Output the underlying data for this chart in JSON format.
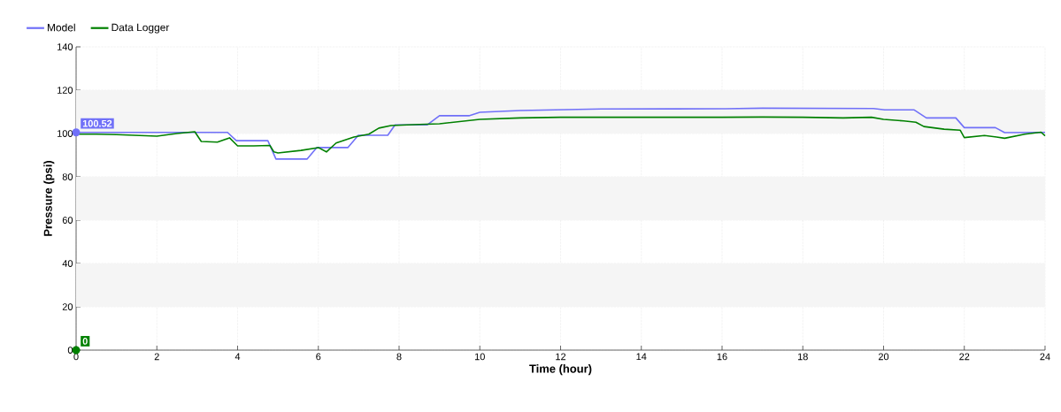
{
  "chart_data": {
    "type": "line",
    "xlabel": "Time (hour)",
    "ylabel": "Pressure (psi)",
    "xlim": [
      0,
      24
    ],
    "ylim": [
      0,
      140
    ],
    "xticks": [
      0,
      2,
      4,
      6,
      8,
      10,
      12,
      14,
      16,
      18,
      20,
      22,
      24
    ],
    "yticks": [
      0,
      20,
      40,
      60,
      80,
      100,
      120,
      140
    ],
    "grid": true,
    "legend": "top left",
    "line_style": "solid",
    "marker": "none",
    "bands": [
      {
        "axis": "y",
        "from": 20,
        "to": 40,
        "color": "#f5f5f5"
      },
      {
        "axis": "y",
        "from": 60,
        "to": 80,
        "color": "#f5f5f5"
      },
      {
        "axis": "y",
        "from": 100,
        "to": 120,
        "color": "#f5f5f5"
      }
    ],
    "annotations": [
      {
        "text": "100.52",
        "x": 0,
        "y": 100.52
      },
      {
        "text": "0",
        "x": 0,
        "y": 0
      }
    ],
    "series": [
      {
        "name": "Model",
        "color": "#7070f8",
        "x": [
          0,
          3.75,
          3.97,
          4.75,
          4.95,
          5.72,
          5.96,
          6.73,
          6.99,
          7.72,
          7.9,
          8.7,
          9.0,
          9.73,
          10.0,
          11,
          13,
          16.1,
          17,
          19.75,
          20.03,
          20.76,
          21.06,
          21.79,
          22.0,
          22.77,
          23.0,
          24
        ],
        "values": [
          100.5,
          100.5,
          96.7,
          96.7,
          88.2,
          88.2,
          93.5,
          93.5,
          99.2,
          99.2,
          104,
          104,
          108.2,
          108.2,
          109.8,
          110.6,
          111.3,
          111.4,
          111.7,
          111.5,
          110.9,
          110.9,
          107.2,
          107.2,
          102.7,
          102.7,
          100.4,
          100.5
        ]
      },
      {
        "name": "Data Logger",
        "color": "#008000",
        "x": [
          0,
          0.5,
          1,
          2,
          2.5,
          2.94,
          3.1,
          3.5,
          3.8,
          4.0,
          4.4,
          4.8,
          4.9,
          5.0,
          5.57,
          6.0,
          6.2,
          6.44,
          6.88,
          7.25,
          7.5,
          7.8,
          8.2,
          8.5,
          9,
          10,
          11,
          12,
          14,
          16,
          17,
          18,
          19,
          19.7,
          20,
          20.5,
          20.8,
          21,
          21.5,
          21.9,
          22,
          22.5,
          22.8,
          23,
          23.5,
          23.9,
          24
        ],
        "values": [
          99.7,
          99.7,
          99.5,
          98.8,
          100,
          100.8,
          96.3,
          96,
          98,
          94.3,
          94.3,
          94.5,
          91.5,
          91,
          92.2,
          93.5,
          91.5,
          95.6,
          98.4,
          99.7,
          102.5,
          103.7,
          104,
          104.2,
          104.5,
          106.5,
          107.2,
          107.5,
          107.5,
          107.5,
          107.6,
          107.5,
          107.2,
          107.5,
          106.5,
          105.8,
          105.2,
          103.2,
          102,
          101.5,
          98.1,
          99.1,
          98.4,
          97.8,
          99.7,
          100.6,
          98.9
        ]
      }
    ]
  }
}
